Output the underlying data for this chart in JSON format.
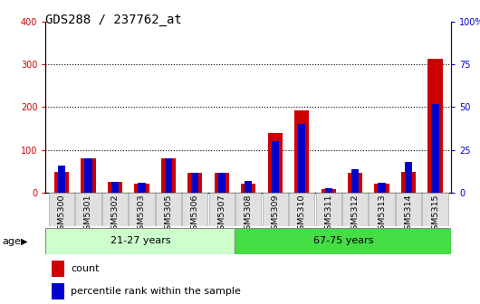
{
  "title": "GDS288 / 237762_at",
  "samples": [
    "GSM5300",
    "GSM5301",
    "GSM5302",
    "GSM5303",
    "GSM5305",
    "GSM5306",
    "GSM5307",
    "GSM5308",
    "GSM5309",
    "GSM5310",
    "GSM5311",
    "GSM5312",
    "GSM5313",
    "GSM5314",
    "GSM5315"
  ],
  "count_values": [
    50,
    80,
    25,
    22,
    80,
    48,
    48,
    22,
    140,
    192,
    10,
    48,
    22,
    50,
    312
  ],
  "percentile_values": [
    16,
    20,
    6.5,
    6,
    20,
    12,
    12,
    7,
    30,
    40,
    3,
    14,
    6,
    18,
    52
  ],
  "group1_label": "21-27 years",
  "group2_label": "67-75 years",
  "group1_count": 7,
  "group2_count": 8,
  "left_ylim": [
    0,
    400
  ],
  "right_ylim": [
    0,
    100
  ],
  "left_yticks": [
    0,
    100,
    200,
    300,
    400
  ],
  "right_yticks": [
    0,
    25,
    50,
    75,
    100
  ],
  "right_yticklabels": [
    "0",
    "25",
    "50",
    "75",
    "100%"
  ],
  "left_tick_color": "#cc0000",
  "right_tick_color": "#0000cc",
  "bar_color_red": "#cc0000",
  "bar_color_blue": "#0000cc",
  "group1_bg": "#ccffcc",
  "group2_bg": "#44dd44",
  "age_label": "age",
  "legend_count": "count",
  "legend_percentile": "percentile rank within the sample",
  "title_fontsize": 10,
  "tick_fontsize": 7,
  "label_fontsize": 8
}
